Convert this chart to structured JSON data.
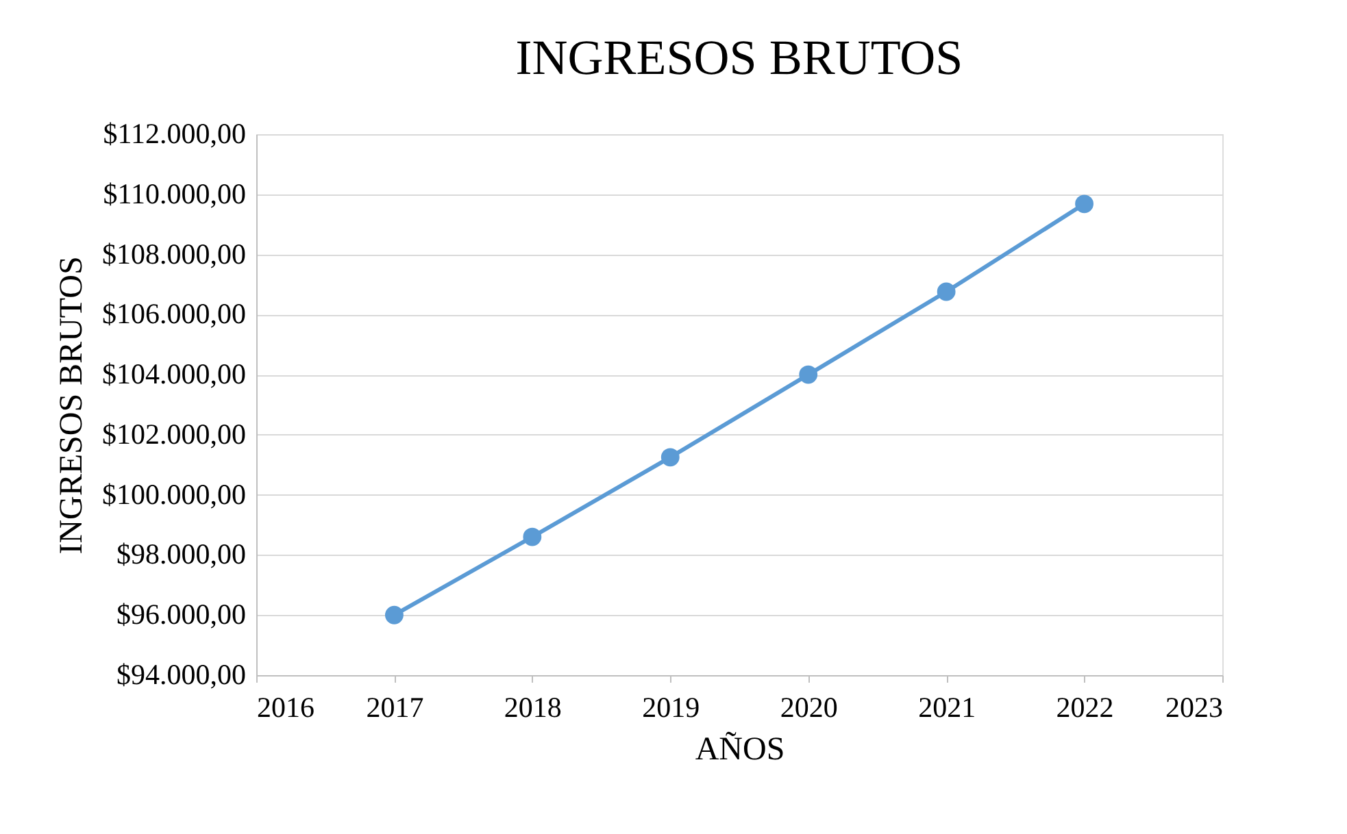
{
  "chart_data": {
    "type": "line",
    "title": "INGRESOS BRUTOS",
    "xlabel": "AÑOS",
    "ylabel": "INGRESOS BRUTOS",
    "x": [
      2017,
      2018,
      2019,
      2020,
      2021,
      2022
    ],
    "series": [
      {
        "color": "#5b9bd5",
        "values": [
          96000,
          98600,
          101250,
          104000,
          106760,
          109680
        ]
      }
    ],
    "xlim": [
      2016,
      2023
    ],
    "xticks": [
      2016,
      2017,
      2018,
      2019,
      2020,
      2021,
      2022,
      2023
    ],
    "ylim": [
      94000,
      112000
    ],
    "yticks": [
      {
        "value": 94000,
        "label": "$94.000,00"
      },
      {
        "value": 96000,
        "label": "$96.000,00"
      },
      {
        "value": 98000,
        "label": "$98.000,00"
      },
      {
        "value": 100000,
        "label": "$100.000,00"
      },
      {
        "value": 102000,
        "label": "$102.000,00"
      },
      {
        "value": 104000,
        "label": "$104.000,00"
      },
      {
        "value": 106000,
        "label": "$106.000,00"
      },
      {
        "value": 108000,
        "label": "$108.000,00"
      },
      {
        "value": 110000,
        "label": "$110.000,00"
      },
      {
        "value": 112000,
        "label": "$112.000,00"
      }
    ],
    "grid": "y",
    "marker": "circle",
    "line_style": "solid"
  }
}
